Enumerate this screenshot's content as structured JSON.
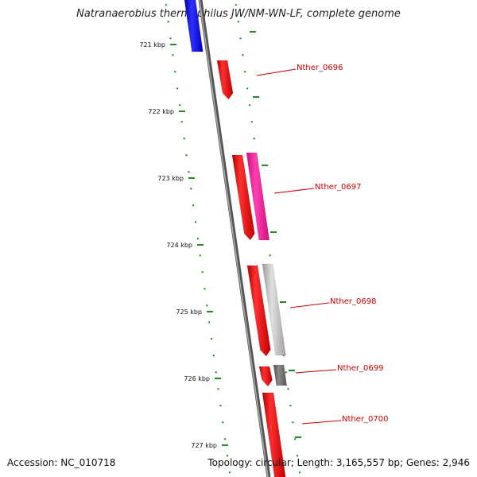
{
  "title": "Natranaerobius thermophilus JW/NM-WN-LF, complete genome",
  "footer": {
    "accession": "Accession: NC_010718",
    "summary": "Topology: circular; Length: 3,165,557 bp; Genes: 2,946"
  },
  "colors": {
    "cds_forward": "#e00000",
    "cds_pink": "#ff2aa0",
    "cds_gray": "#c0c0c0",
    "cds_darkgray": "#707070",
    "cds_blue": "#0000e6",
    "backbone": "#777777",
    "tick": "#228b22",
    "label": "#cc0000"
  },
  "ruler_ticks": [
    {
      "label": "721 kbp"
    },
    {
      "label": "722 kbp"
    },
    {
      "label": "723 kbp"
    },
    {
      "label": "724 kbp"
    },
    {
      "label": "725 kbp"
    },
    {
      "label": "726 kbp"
    },
    {
      "label": "727 kbp"
    }
  ],
  "gene_labels": [
    {
      "label": "Nther_0696"
    },
    {
      "label": "Nther_0697"
    },
    {
      "label": "Nther_0698"
    },
    {
      "label": "Nther_0699"
    },
    {
      "label": "Nther_0700"
    }
  ]
}
